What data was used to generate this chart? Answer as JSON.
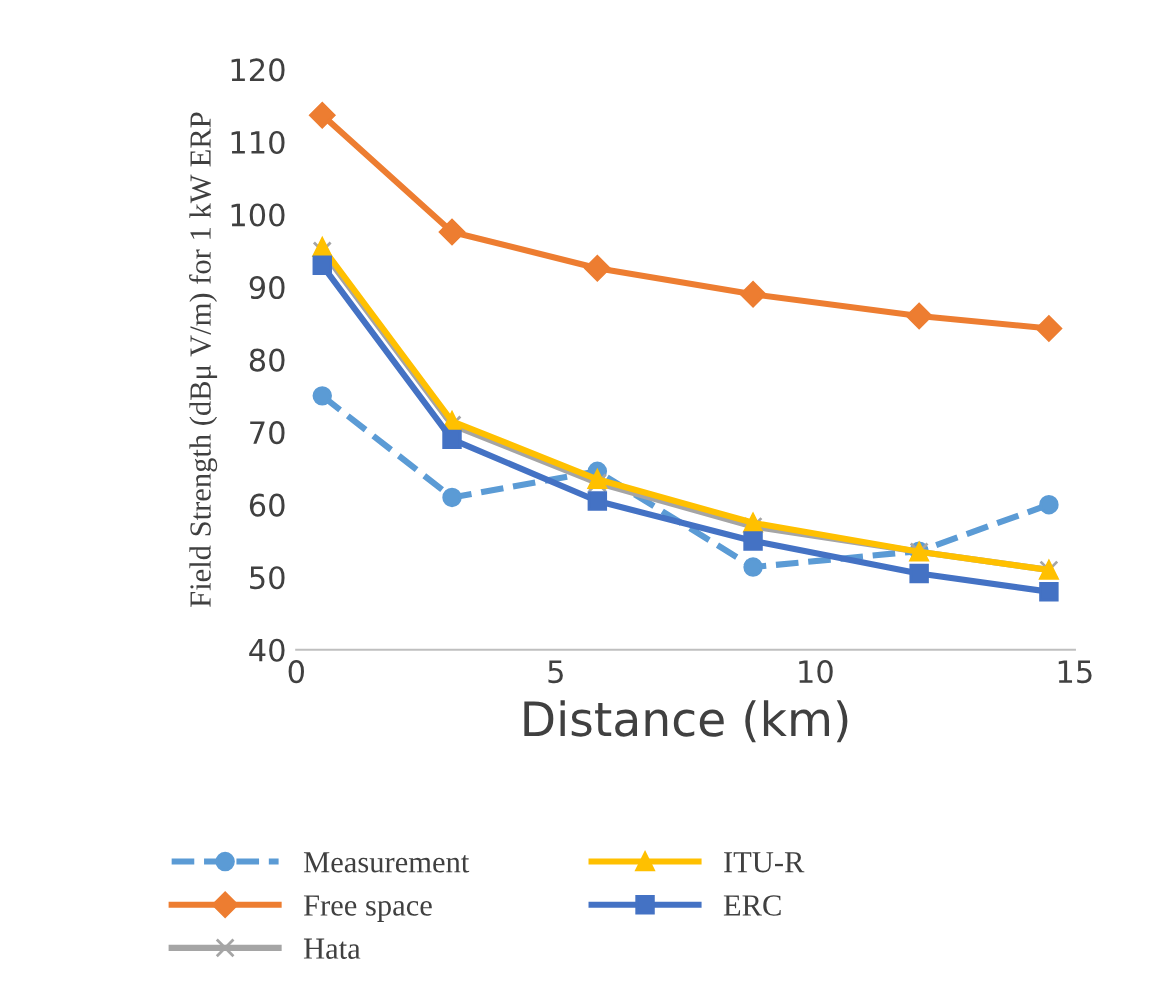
{
  "chart_data": {
    "type": "line",
    "xlabel": "Distance (km)",
    "ylabel": "Field Strength (dBμ V/m) for 1 kW ERP",
    "x": [
      0.5,
      3,
      5.8,
      8.8,
      12,
      14.5
    ],
    "xlim": [
      0,
      15
    ],
    "xticks": [
      0,
      5,
      10,
      15
    ],
    "ylim": [
      40,
      120
    ],
    "yticks": [
      40,
      50,
      60,
      70,
      80,
      90,
      100,
      110,
      120
    ],
    "grid": false,
    "legend": "bottom",
    "series": [
      {
        "name": "Measurement",
        "color": "#5b9bd5",
        "marker": "circle",
        "line_style": "dashed",
        "values": [
          75,
          61,
          64.6,
          51.4,
          53.6,
          60
        ]
      },
      {
        "name": "Free space",
        "color": "#ed7d31",
        "marker": "diamond",
        "line_style": "solid",
        "values": [
          113.7,
          97.6,
          92.6,
          89,
          86,
          84.3
        ]
      },
      {
        "name": "Hata",
        "color": "#a5a5a5",
        "marker": "cross",
        "line_style": "solid",
        "values": [
          95,
          71,
          63,
          57,
          53.5,
          51
        ]
      },
      {
        "name": "ITU-R",
        "color": "#ffc000",
        "marker": "triangle",
        "line_style": "solid",
        "values": [
          95.5,
          71.5,
          63.5,
          57.5,
          53.5,
          51
        ]
      },
      {
        "name": "ERC",
        "color": "#4472c4",
        "marker": "square",
        "line_style": "solid",
        "values": [
          93,
          69,
          60.5,
          55,
          50.5,
          48
        ]
      }
    ]
  }
}
